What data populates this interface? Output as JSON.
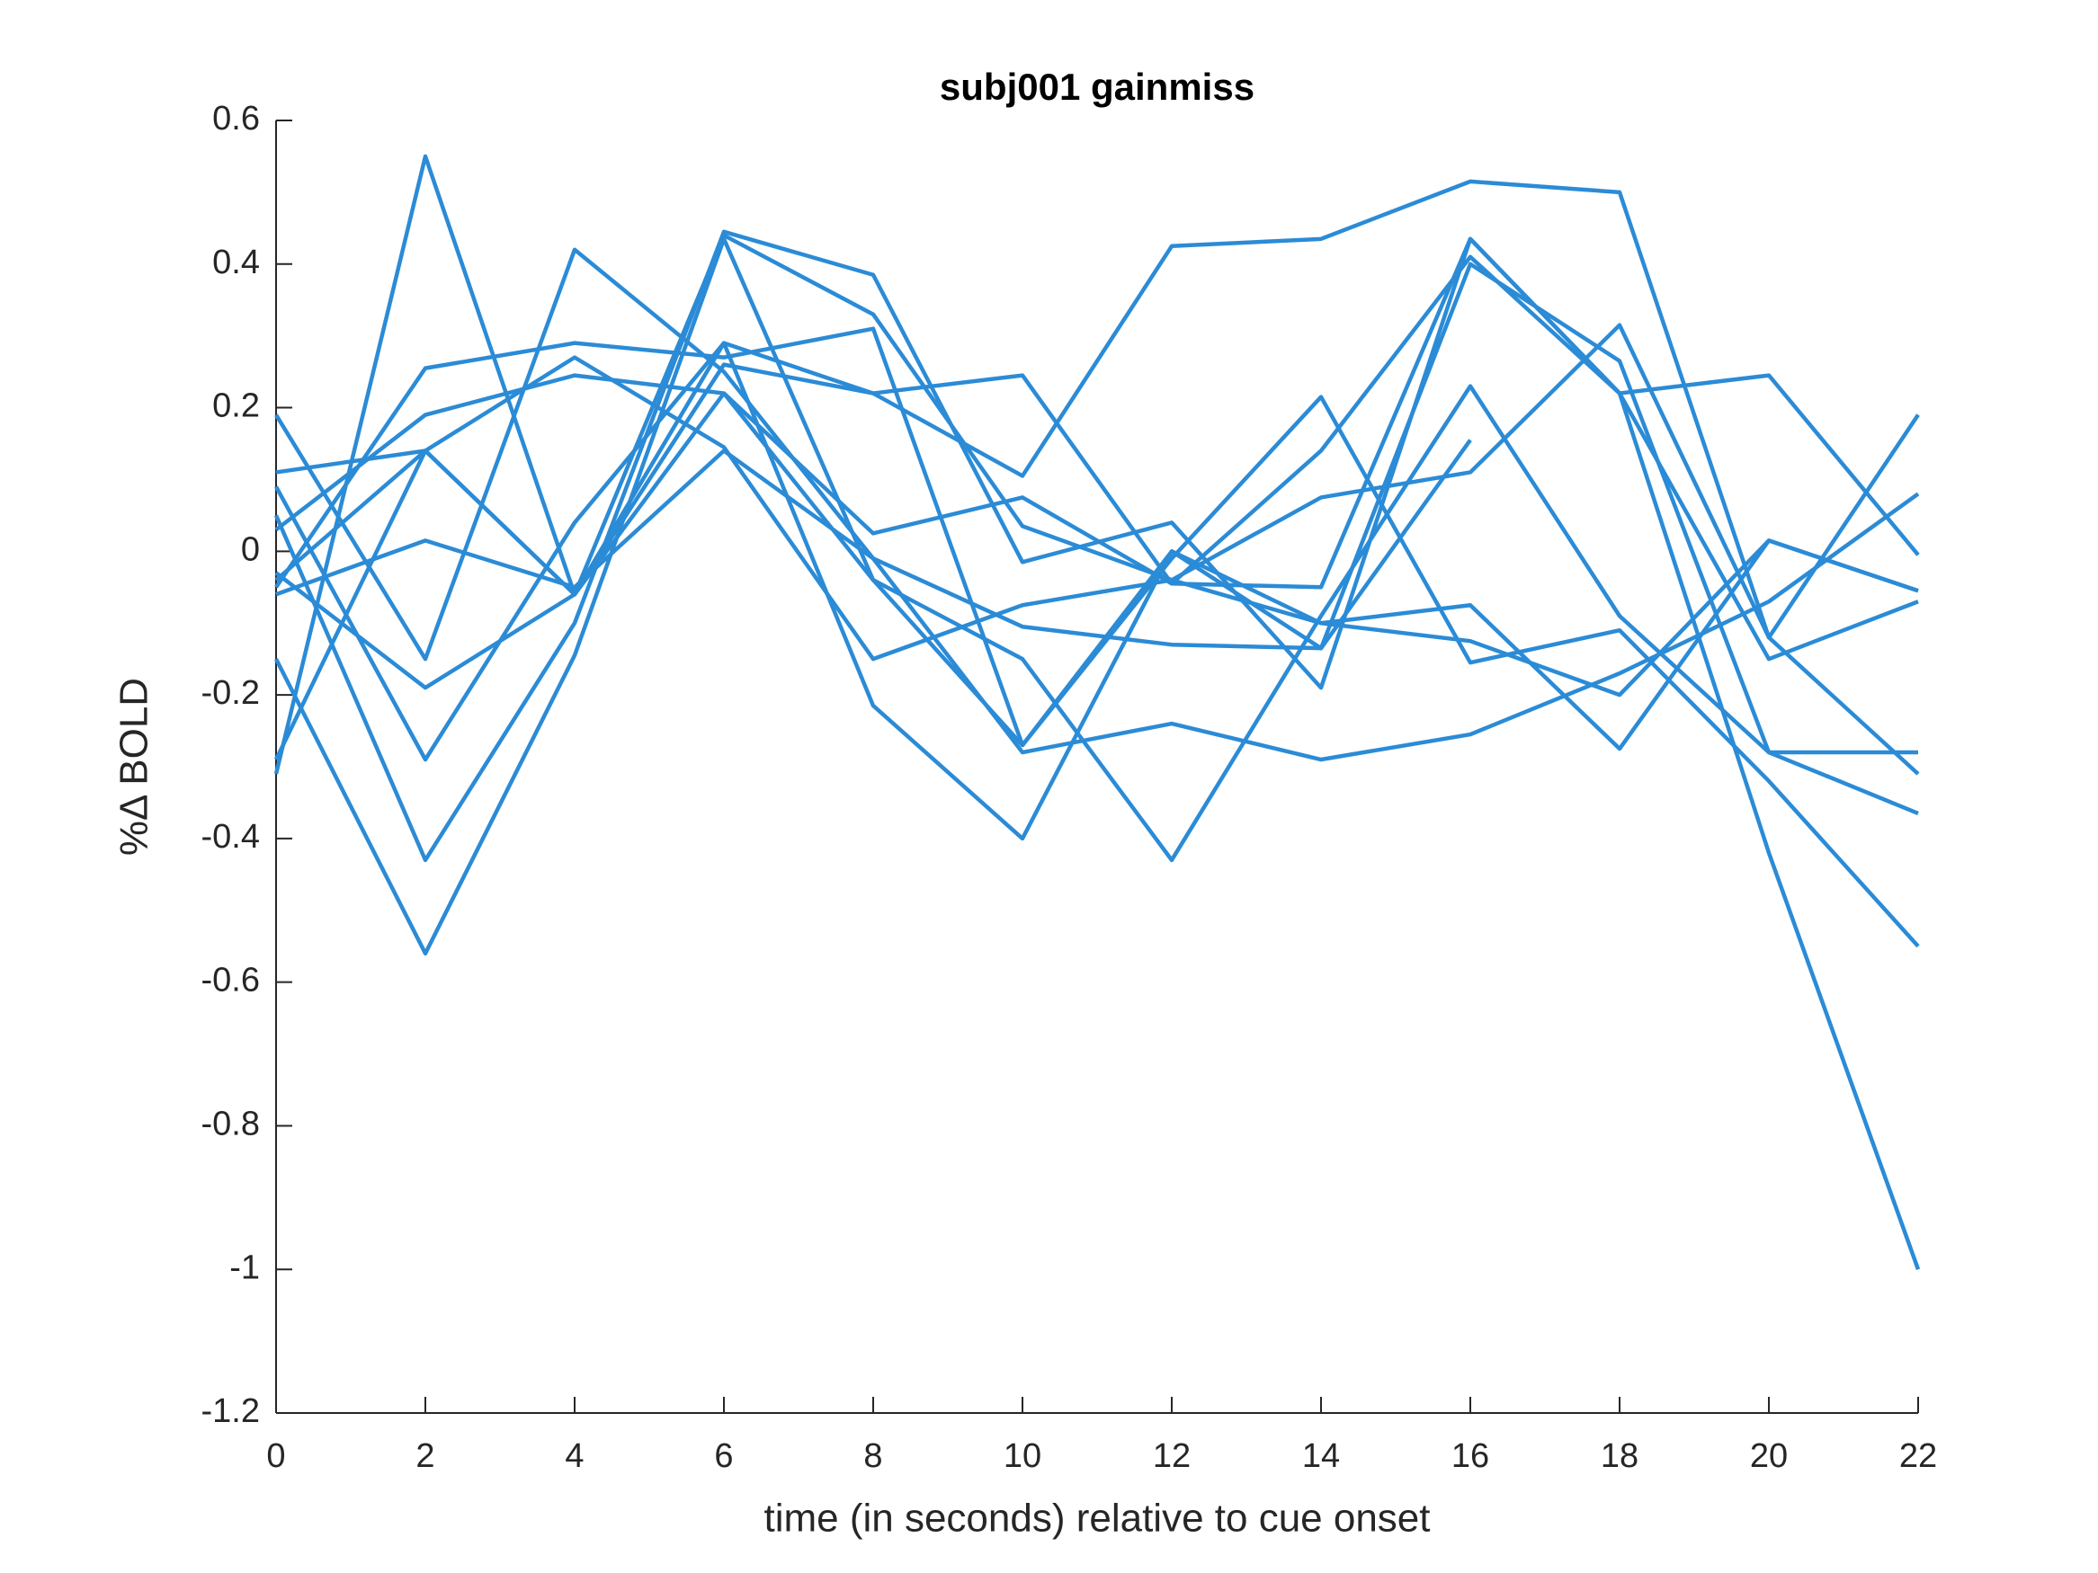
{
  "chart_data": {
    "type": "line",
    "title": "subj001 gainmiss",
    "x_label": "time (in seconds) relative to cue onset",
    "y_label": "%Δ BOLD",
    "x": [
      0,
      2,
      4,
      6,
      8,
      10,
      12,
      14,
      16,
      18,
      20,
      22
    ],
    "xlim": [
      0,
      22
    ],
    "xticks": [
      0,
      2,
      4,
      6,
      8,
      10,
      12,
      14,
      16,
      18,
      20,
      22
    ],
    "ylim": [
      -1.2,
      0.6
    ],
    "yticks": [
      -1.2,
      -1,
      -0.8,
      -0.6,
      -0.4,
      -0.2,
      0,
      0.2,
      0.4,
      0.6
    ],
    "series": [
      {
        "color": "#2b8bd6",
        "values": [
          0.11,
          0.14,
          -0.06,
          0.44,
          0.33,
          0.035,
          -0.04,
          -0.1,
          -0.075,
          -0.275,
          0.015,
          -0.055
        ]
      },
      {
        "color": "#2b8bd6",
        "values": [
          -0.31,
          0.55,
          -0.06,
          0.26,
          0.22,
          0.245,
          -0.045,
          0.14,
          0.41,
          0.22,
          0.245,
          -0.005
        ]
      },
      {
        "color": "#2b8bd6",
        "values": [
          0.05,
          -0.43,
          -0.1,
          0.445,
          0.385,
          -0.015,
          0.04,
          -0.19,
          0.435,
          0.22,
          -0.42,
          -1.0
        ]
      },
      {
        "color": "#2b8bd6",
        "values": [
          -0.05,
          0.255,
          0.29,
          0.27,
          0.31,
          -0.27,
          -0.01,
          0.215,
          -0.155,
          -0.11,
          -0.32,
          -0.55
        ]
      },
      {
        "color": "#2b8bd6",
        "values": [
          0.19,
          -0.15,
          0.42,
          0.25,
          -0.01,
          -0.105,
          -0.13,
          -0.135,
          0.4,
          0.265,
          -0.28,
          -0.28
        ]
      },
      {
        "color": "#2b8bd6",
        "values": [
          0.03,
          0.19,
          0.245,
          0.22,
          0.025,
          0.075,
          -0.045,
          -0.05,
          0.435,
          0.22,
          -0.15,
          -0.07
        ]
      },
      {
        "color": "#2b8bd6",
        "values": [
          -0.15,
          -0.56,
          -0.145,
          0.435,
          -0.04,
          -0.15,
          -0.43,
          -0.09,
          0.23,
          -0.09,
          -0.28,
          -0.365
        ]
      },
      {
        "color": "#2b8bd6",
        "values": [
          -0.29,
          0.14,
          0.27,
          0.145,
          -0.15,
          -0.075,
          -0.04,
          0.075,
          0.11,
          0.315,
          -0.12,
          0.19
        ]
      },
      {
        "color": "#2b8bd6",
        "values": [
          0.09,
          -0.29,
          0.04,
          0.29,
          -0.215,
          -0.4,
          0.0,
          -0.1,
          -0.125,
          -0.2,
          0.015,
          -0.055
        ]
      },
      {
        "color": "#2b8bd6",
        "values": [
          -0.06,
          0.015,
          -0.05,
          0.14,
          -0.01,
          -0.28,
          -0.24,
          -0.29,
          -0.255,
          -0.17,
          -0.07,
          0.08
        ]
      },
      {
        "color": "#2b8bd6",
        "values": [
          -0.03,
          -0.19,
          -0.06,
          0.29,
          0.22,
          0.105,
          0.425,
          0.435,
          0.515,
          0.5,
          -0.12,
          -0.31
        ]
      },
      {
        "color": "#2b8bd6",
        "values": [
          -0.04,
          0.14,
          -0.06,
          0.22,
          -0.04,
          -0.27,
          0.0,
          -0.135,
          0.155,
          null,
          null,
          null
        ]
      }
    ]
  }
}
